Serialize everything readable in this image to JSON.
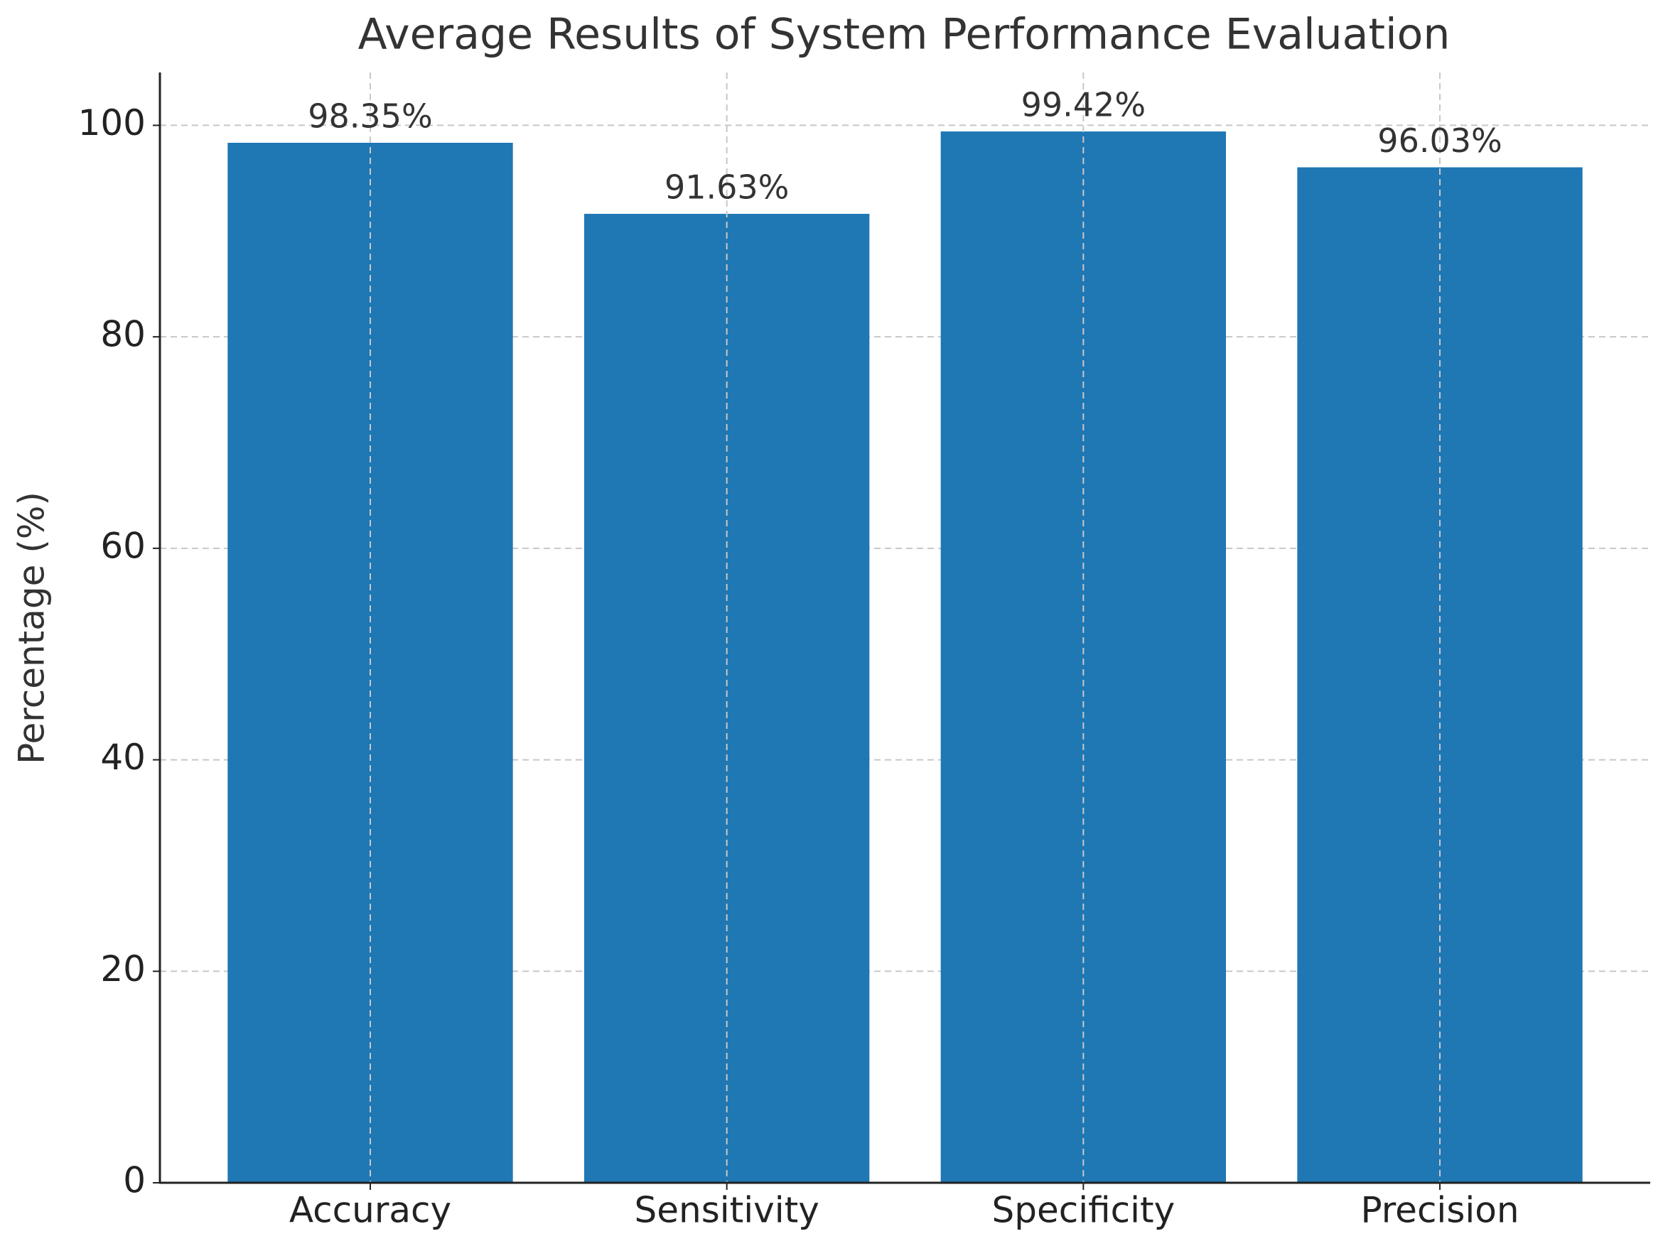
{
  "chart_data": {
    "type": "bar",
    "title": "Average Results of System Performance Evaluation",
    "y_label": "Percentage (%)",
    "categories": [
      "Accuracy",
      "Sensitivity",
      "Specificity",
      "Precision"
    ],
    "values": [
      98.35,
      91.63,
      99.42,
      96.03
    ],
    "value_labels": [
      "98.35%",
      "91.63%",
      "99.42%",
      "96.03%"
    ],
    "color": "#1f77b4",
    "ylim": [
      0,
      105
    ],
    "yticks": [
      0,
      20,
      40,
      60,
      80,
      100
    ],
    "grid": true
  }
}
